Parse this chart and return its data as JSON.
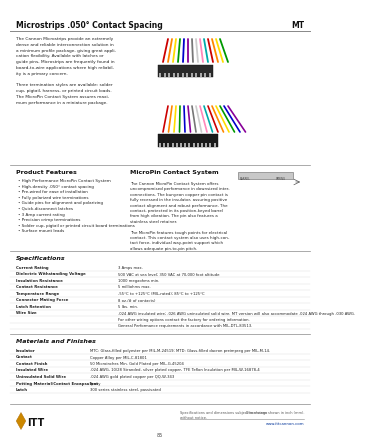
{
  "title": "Microstrips .050° Contact Spacing",
  "title_right": "MT",
  "bg_color": "#ffffff",
  "text_color": "#111111",
  "gray_text": "#555555",
  "intro_lines": [
    "The Cannon Microstrips provide an extremely",
    "dense and reliable interconnection solution in",
    "a minimum profile package, giving great appli-",
    "cation flexibility. Available with latches or",
    "guide pins, Microstrips are frequently found in",
    "board-to-wire applications where high reliabil-",
    "ity is a primary concern.",
    "",
    "Three termination styles are available: solder",
    "cup, pigtail, harness, or printed circuit loads.",
    "The MicroPin Contact System assures maxi-",
    "mum performance in a miniature package."
  ],
  "product_features_title": "Product Features",
  "product_features": [
    "High Performance MicroPin Contact System",
    "High-density .050° contact spacing",
    "Pre-wired for ease of installation",
    "Fully polarized wire terminations",
    "Guide pins for alignment and polarizing",
    "Quick-disconnect latches",
    "3 Amp current rating",
    "Precision crimp terminations",
    "Solder cup, pigtail or printed circuit board terminations",
    "Surface mount leads"
  ],
  "micropin_title": "MicroPin Contact System",
  "micropin_lines": [
    "The Cannon MicroPin Contact System offers",
    "uncompromised performance in downsized inter-",
    "connections. The bunyeon copper pin contact is",
    "fully recessed in the insulator, assuring positive",
    "contact alignment and robust performance. The",
    "contact, protected in its position-keyed barrel",
    "from high vibration. The pin also features a",
    "stainless steel retainer.",
    "",
    "The MicroPin features tough points for electrical",
    "contact. This contact system also uses high-con-",
    "tact force, individual way-point support which",
    "allows adequate pin-to-pin pitch."
  ],
  "specs_title": "Specifications",
  "specs": [
    [
      "Current Rating",
      "3 Amps max."
    ],
    [
      "Dielectric Withstanding Voltage",
      "500 VAC at sea level; 350 VAC at 70,000 foot altitude"
    ],
    [
      "Insulation Resistance",
      "1000 megaohms min."
    ],
    [
      "Contact Resistance",
      "5 milliohms max."
    ],
    [
      "Temperature Range",
      "-55°C to +125°C (MIL-rated); 85°C to +125°C"
    ],
    [
      "Connector Mating Force",
      "8 oz./# of contacts)"
    ],
    [
      "Latch Retention",
      "5 lbs. min."
    ],
    [
      "Wire Size",
      ".024 AWG insulated wire; .026 AWG uninsulated solid wire. MT version will also accommodate .024 AWG through .030 AWG."
    ],
    [
      "",
      "For other wiring options contact the factory for ordering information."
    ],
    [
      "",
      "General Performance requirements in accordance with MIL-DTL-83513."
    ]
  ],
  "materials_title": "Materials and Finishes",
  "materials": [
    [
      "Insulator",
      "MTC: Glass-filled polyester per MIL-M-24519; MTD: Glass-filled dacron preimpreg per MIL-M-14."
    ],
    [
      "Contact",
      "Copper Alloy per MIL-C-81801"
    ],
    [
      "Contact Finish",
      "50 Microinches Min. Gold Plated per MIL-G-45204"
    ],
    [
      "Insulated Wire",
      ".024 AWG, 10/28 Stranded, silver plated copper, TFE Teflon Insulation per MIL-W-16878-4"
    ],
    [
      "Uninsulated Solid Wire",
      ".024 AWG gold plated copper per QQ-W-343"
    ],
    [
      "Potting Material/Contact Encapsulant",
      "Epoxy"
    ],
    [
      "Latch",
      "300 series stainless steel, passivated"
    ]
  ],
  "footer_left": "Dimensions shown in inch (mm).",
  "footer_right1": "Specifications and dimensions subject to change",
  "footer_right2": "without notice.",
  "footer_url": "www.ittcannon.com",
  "page_num": "85",
  "ribbon_colors": [
    "#cc0000",
    "#ff8800",
    "#ffdd00",
    "#009900",
    "#0000cc",
    "#880099",
    "#777777",
    "#cccccc",
    "#ff88bb",
    "#00aaaa",
    "#cc0000",
    "#ff8800",
    "#ffdd00",
    "#009900",
    "#0000cc",
    "#880099",
    "#777777",
    "#cccccc",
    "#ff88bb",
    "#00aaaa"
  ]
}
